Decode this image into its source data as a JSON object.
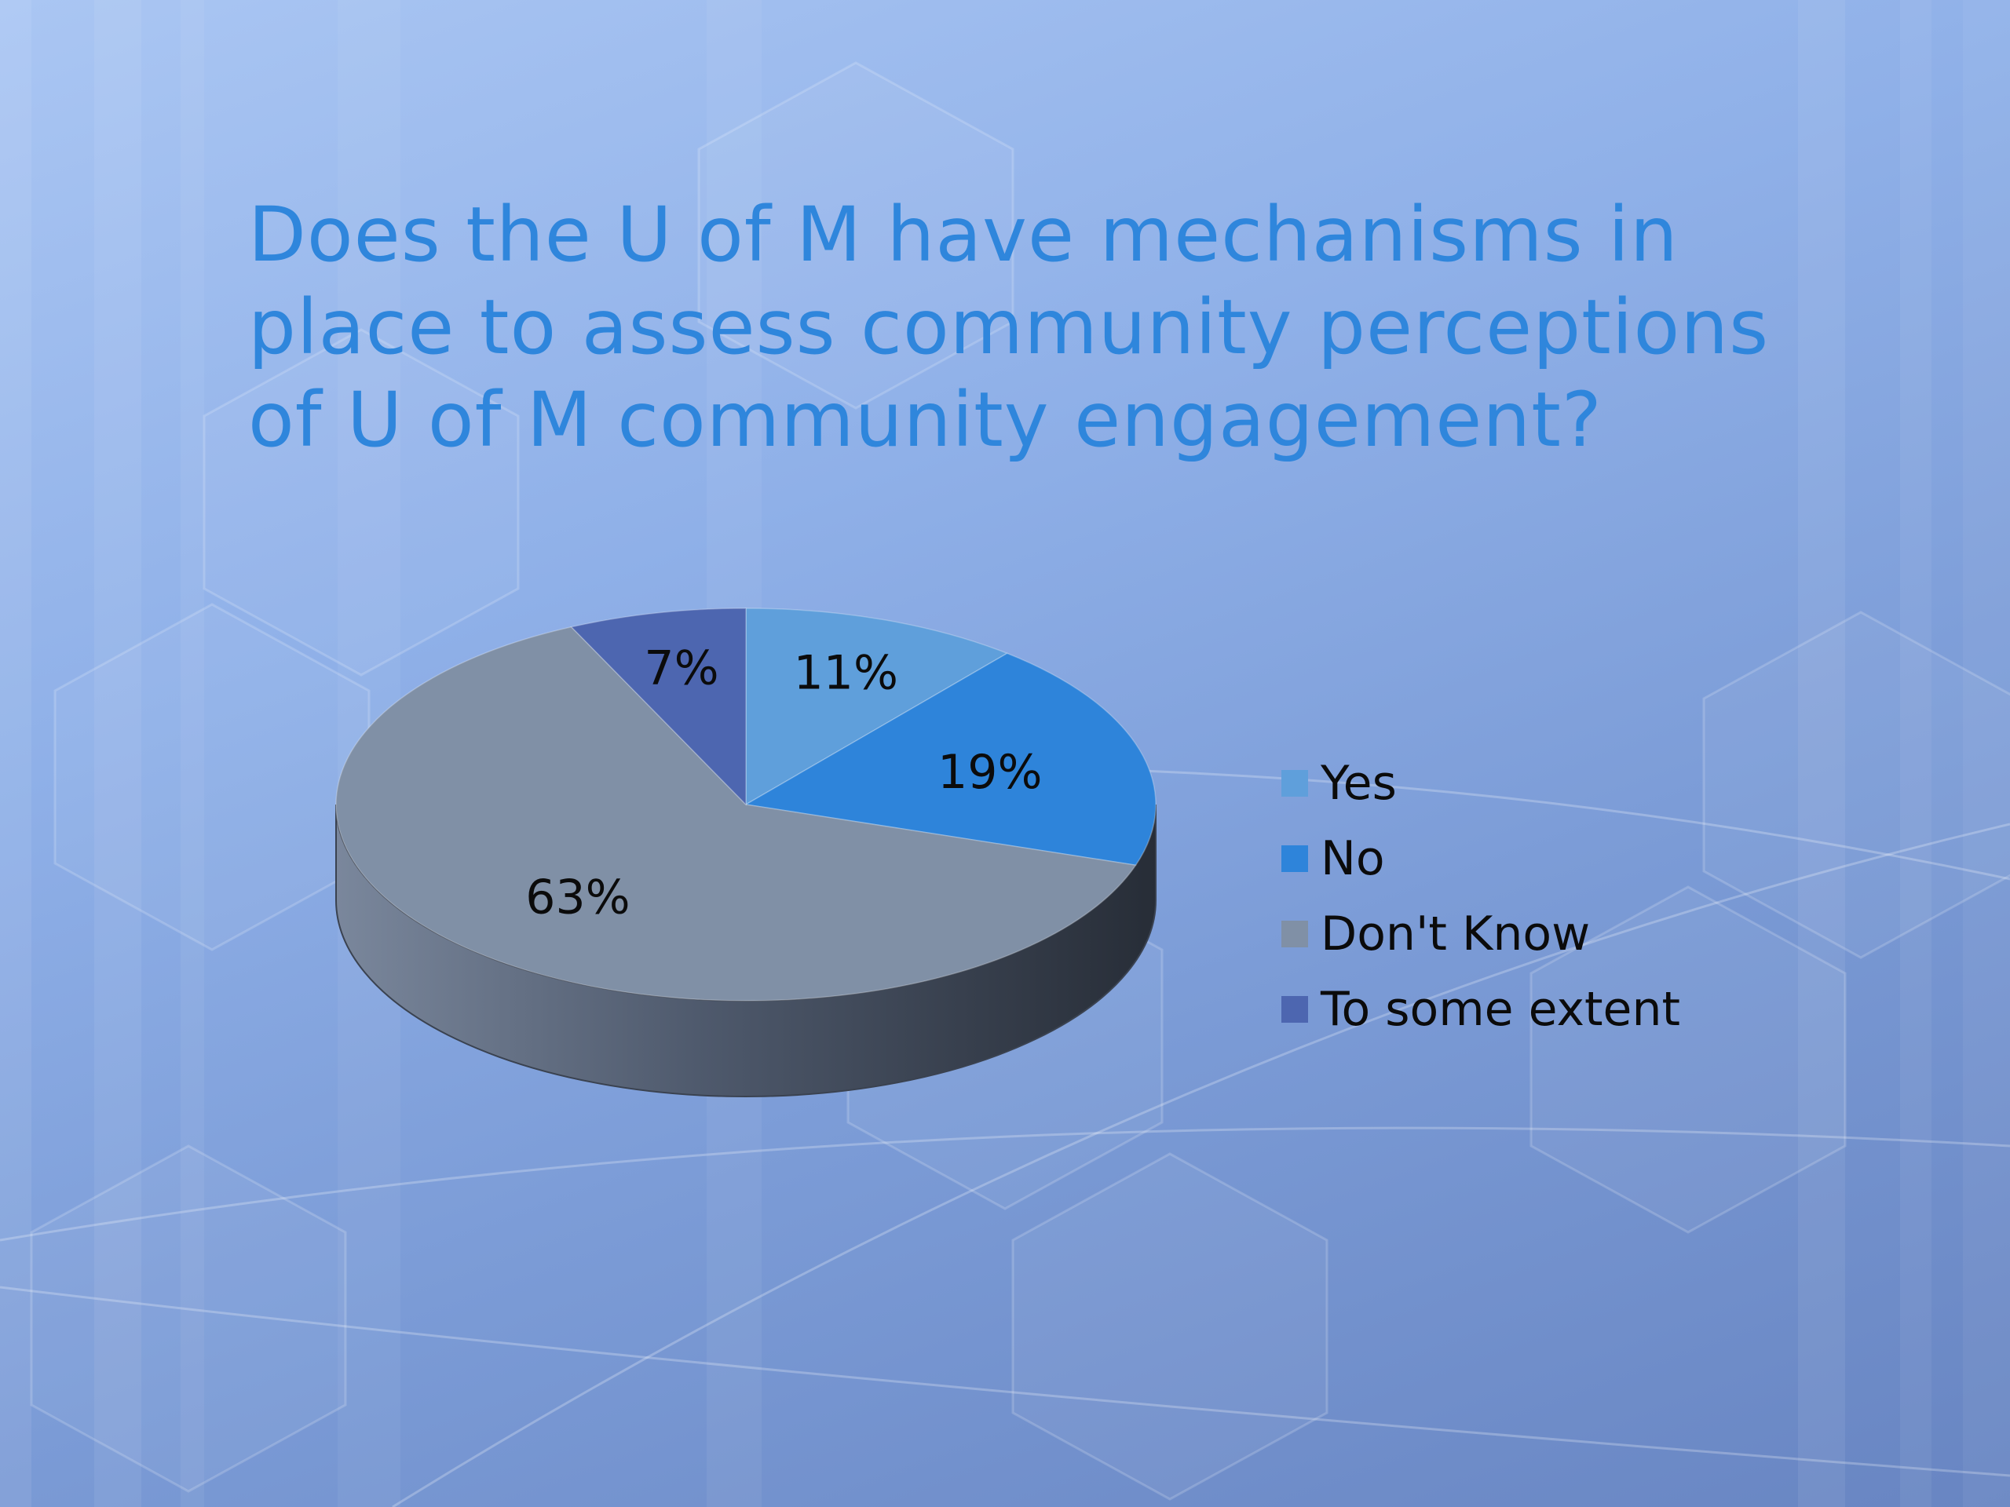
{
  "slide": {
    "title": "Does the U of M have mechanisms in place to assess community perceptions of U of M community engagement?"
  },
  "chart_data": {
    "type": "pie",
    "title": "",
    "categories": [
      "Yes",
      "No",
      "Don't Know",
      "To some extent"
    ],
    "values": [
      11,
      19,
      63,
      7
    ],
    "labels": [
      "11%",
      "19%",
      "63%",
      "7%"
    ],
    "colors": [
      "#5f9fdb",
      "#2e84da",
      "#8090a6",
      "#4d66b0"
    ],
    "style": "3d",
    "legend": "right"
  }
}
